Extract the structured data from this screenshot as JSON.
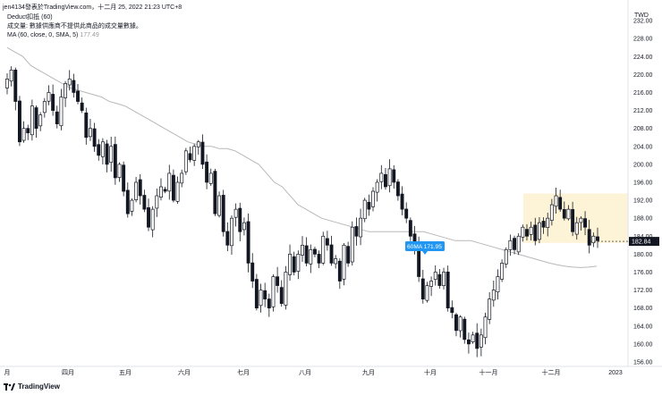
{
  "header": {
    "publish_line": "jen4134發表於TradingView.com，十二月 25, 2022 21:23 UTC+8"
  },
  "legend": {
    "symbol_line": "Deduct扣抵 (60)",
    "notice_line": "成交量: 數據供應商不提供此商品的成交量數據。",
    "ma_line": "MA (60, close, 0, SMA, 5)",
    "ma_value": "177.49"
  },
  "footer": {
    "logo_text": "TradingView"
  },
  "chart_data": {
    "type": "candlestick",
    "currency": "TWD",
    "ylim": [
      155,
      235
    ],
    "y_ticks": [
      156,
      160,
      164,
      168,
      172,
      176,
      180,
      184,
      188,
      192,
      196,
      200,
      204,
      208,
      212,
      216,
      220,
      224,
      228,
      232
    ],
    "x_labels": [
      "月",
      "四月",
      "五月",
      "六月",
      "七月",
      "八月",
      "九月",
      "十月",
      "十一月",
      "十二月",
      "2023"
    ],
    "last_price": "182.84",
    "last_price_color": "#131722",
    "ma_color": "#b8b8b8",
    "up_color": "#ffffff",
    "down_color": "#131722",
    "annotation": {
      "label": "60MA 171.95",
      "value": 171.95,
      "color": "#2196f3"
    },
    "highlight_zone": {
      "color": "#fdf3d6",
      "y_range": [
        182.5,
        193.5
      ]
    },
    "closes": [
      219,
      221,
      214,
      205,
      208,
      207,
      213,
      208,
      211,
      214,
      216,
      212,
      209,
      215,
      218,
      219,
      216,
      214,
      212,
      206,
      208,
      204,
      202,
      205,
      200,
      204,
      197,
      200,
      194,
      189,
      192,
      196,
      193,
      190,
      186,
      190,
      193,
      195,
      194,
      198,
      192,
      196,
      198,
      203,
      201,
      204,
      205,
      200,
      196,
      198,
      189,
      193,
      185,
      182,
      188,
      190,
      185,
      187,
      178,
      174,
      168,
      172,
      170,
      168,
      175,
      173,
      169,
      176,
      180,
      176,
      180,
      182,
      178,
      181,
      180,
      178,
      184,
      182,
      178,
      179,
      174,
      182,
      178,
      186,
      184,
      188,
      192,
      190,
      194,
      196,
      198,
      195,
      199,
      196,
      193,
      190,
      188,
      184,
      182,
      175,
      170,
      173,
      174,
      176,
      173,
      176,
      168,
      167,
      163,
      166,
      161,
      160,
      162,
      159,
      162,
      166,
      170,
      172,
      175,
      178,
      181,
      183,
      181,
      184,
      186,
      184,
      186,
      183,
      187,
      186,
      188,
      191,
      193,
      190,
      188,
      190,
      185,
      187,
      188,
      186,
      182,
      184,
      183
    ],
    "ma60": [
      226,
      225,
      224,
      222,
      221,
      220,
      219,
      218,
      217,
      216.5,
      216,
      215.5,
      215,
      214,
      213.5,
      213,
      212,
      211,
      210,
      209,
      208,
      207,
      206,
      205,
      204.5,
      204,
      204,
      203.5,
      203.5,
      203,
      202,
      201,
      200,
      198,
      196,
      195,
      193,
      191,
      190,
      189,
      188,
      187.5,
      187,
      186.5,
      186,
      185.5,
      185,
      185,
      185,
      185,
      185,
      185,
      185,
      185,
      184.5,
      184,
      183.5,
      183,
      183,
      183,
      182.5,
      182,
      181.5,
      181,
      180.5,
      180,
      179.5,
      179,
      178.5,
      178,
      177.6,
      177.3,
      177.1,
      177,
      177.1,
      177.3
    ]
  }
}
